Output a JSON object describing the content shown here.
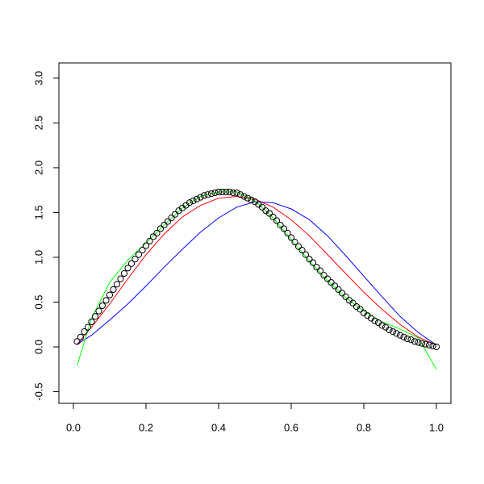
{
  "chart_data": {
    "type": "scatter",
    "xlim": [
      -0.04,
      1.04
    ],
    "ylim": [
      -0.63,
      3.17
    ],
    "xticks": [
      {
        "value": 0,
        "label": "0.0"
      },
      0.2,
      0.4,
      0.6,
      0.8,
      {
        "value": 1,
        "label": "1.0"
      }
    ],
    "yticks": [
      -0.5,
      {
        "value": 0,
        "label": "0.0"
      },
      0.5,
      {
        "value": 1,
        "label": "1.0"
      },
      1.5,
      {
        "value": 2,
        "label": "2.0"
      },
      2.5,
      {
        "value": 3,
        "label": "3.0"
      }
    ],
    "series": [
      {
        "color": "#ff0000",
        "style": "line",
        "x": [
          0.01,
          0.05,
          0.1,
          0.15,
          0.2,
          0.25,
          0.3,
          0.35,
          0.4,
          0.45,
          0.5,
          0.55,
          0.6,
          0.65,
          0.7,
          0.75,
          0.8,
          0.85,
          0.9,
          0.95,
          1.0
        ],
        "values": [
          0.03,
          0.22,
          0.48,
          0.76,
          1.03,
          1.26,
          1.45,
          1.58,
          1.66,
          1.68,
          1.65,
          1.56,
          1.42,
          1.24,
          1.03,
          0.82,
          0.61,
          0.42,
          0.25,
          0.11,
          0.02
        ]
      },
      {
        "color": "#0000ff",
        "style": "line",
        "x": [
          0.01,
          0.05,
          0.1,
          0.15,
          0.2,
          0.25,
          0.3,
          0.35,
          0.4,
          0.45,
          0.5,
          0.55,
          0.6,
          0.65,
          0.7,
          0.75,
          0.8,
          0.85,
          0.9,
          0.95,
          1.0
        ],
        "values": [
          0.03,
          0.13,
          0.3,
          0.48,
          0.68,
          0.89,
          1.09,
          1.28,
          1.44,
          1.56,
          1.62,
          1.61,
          1.54,
          1.42,
          1.24,
          1.02,
          0.79,
          0.56,
          0.34,
          0.16,
          0.02
        ]
      },
      {
        "color": "#00ff00",
        "style": "line",
        "x": [
          0.01,
          0.05,
          0.1,
          0.15,
          0.2,
          0.25,
          0.3,
          0.35,
          0.4,
          0.45,
          0.5,
          0.55,
          0.6,
          0.65,
          0.7,
          0.75,
          0.8,
          0.85,
          0.9,
          0.95,
          1.0
        ],
        "values": [
          -0.21,
          0.32,
          0.72,
          0.97,
          1.16,
          1.36,
          1.55,
          1.68,
          1.73,
          1.73,
          1.63,
          1.44,
          1.2,
          0.96,
          0.74,
          0.55,
          0.4,
          0.28,
          0.2,
          0.1,
          -0.25
        ]
      },
      {
        "color": "#000000",
        "style": "points",
        "x": [
          0.01,
          0.02,
          0.03,
          0.04,
          0.05,
          0.06,
          0.07,
          0.08,
          0.09,
          0.1,
          0.11,
          0.12,
          0.13,
          0.14,
          0.15,
          0.16,
          0.17,
          0.18,
          0.19,
          0.2,
          0.21,
          0.22,
          0.23,
          0.24,
          0.25,
          0.26,
          0.27,
          0.28,
          0.29,
          0.3,
          0.31,
          0.32,
          0.33,
          0.34,
          0.35,
          0.36,
          0.37,
          0.38,
          0.39,
          0.4,
          0.41,
          0.42,
          0.43,
          0.44,
          0.45,
          0.46,
          0.47,
          0.48,
          0.49,
          0.5,
          0.51,
          0.52,
          0.53,
          0.54,
          0.55,
          0.56,
          0.57,
          0.58,
          0.59,
          0.6,
          0.61,
          0.62,
          0.63,
          0.64,
          0.65,
          0.66,
          0.67,
          0.68,
          0.69,
          0.7,
          0.71,
          0.72,
          0.73,
          0.74,
          0.75,
          0.76,
          0.77,
          0.78,
          0.79,
          0.8,
          0.81,
          0.82,
          0.83,
          0.84,
          0.85,
          0.86,
          0.87,
          0.88,
          0.89,
          0.9,
          0.91,
          0.92,
          0.93,
          0.94,
          0.95,
          0.96,
          0.97,
          0.98,
          0.99,
          1.0
        ],
        "values": [
          0.06,
          0.11,
          0.17,
          0.22,
          0.28,
          0.34,
          0.4,
          0.46,
          0.52,
          0.58,
          0.64,
          0.7,
          0.76,
          0.82,
          0.88,
          0.93,
          0.98,
          1.03,
          1.08,
          1.13,
          1.18,
          1.23,
          1.27,
          1.32,
          1.36,
          1.4,
          1.44,
          1.48,
          1.52,
          1.55,
          1.58,
          1.61,
          1.63,
          1.65,
          1.67,
          1.69,
          1.7,
          1.71,
          1.72,
          1.73,
          1.73,
          1.73,
          1.73,
          1.72,
          1.72,
          1.7,
          1.68,
          1.66,
          1.64,
          1.62,
          1.59,
          1.56,
          1.52,
          1.49,
          1.45,
          1.41,
          1.36,
          1.32,
          1.27,
          1.22,
          1.17,
          1.12,
          1.08,
          1.03,
          0.98,
          0.94,
          0.89,
          0.85,
          0.8,
          0.76,
          0.72,
          0.68,
          0.64,
          0.6,
          0.56,
          0.52,
          0.49,
          0.45,
          0.42,
          0.38,
          0.35,
          0.32,
          0.29,
          0.27,
          0.24,
          0.22,
          0.19,
          0.17,
          0.15,
          0.13,
          0.11,
          0.09,
          0.08,
          0.06,
          0.05,
          0.04,
          0.03,
          0.02,
          0.01,
          0.0
        ]
      }
    ]
  }
}
